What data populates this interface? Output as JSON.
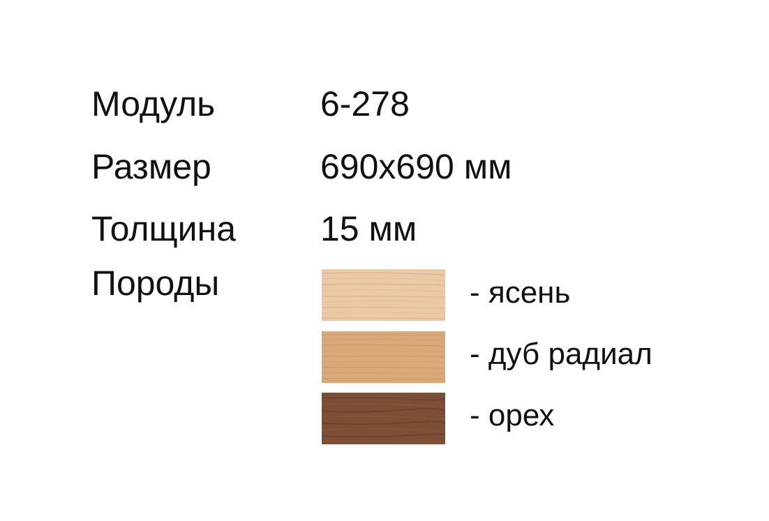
{
  "specs": [
    {
      "label": "Модуль",
      "value": "6-278"
    },
    {
      "label": "Размер",
      "value": "690х690 мм"
    },
    {
      "label": "Толщина",
      "value": "15 мм"
    }
  ],
  "species": {
    "label": "Породы",
    "items": [
      {
        "name": "- ясень",
        "color": "#ebc7a3"
      },
      {
        "name": "- дуб радиал",
        "color": "#d9a878"
      },
      {
        "name": "- орех",
        "color": "#7a4d33"
      }
    ]
  }
}
